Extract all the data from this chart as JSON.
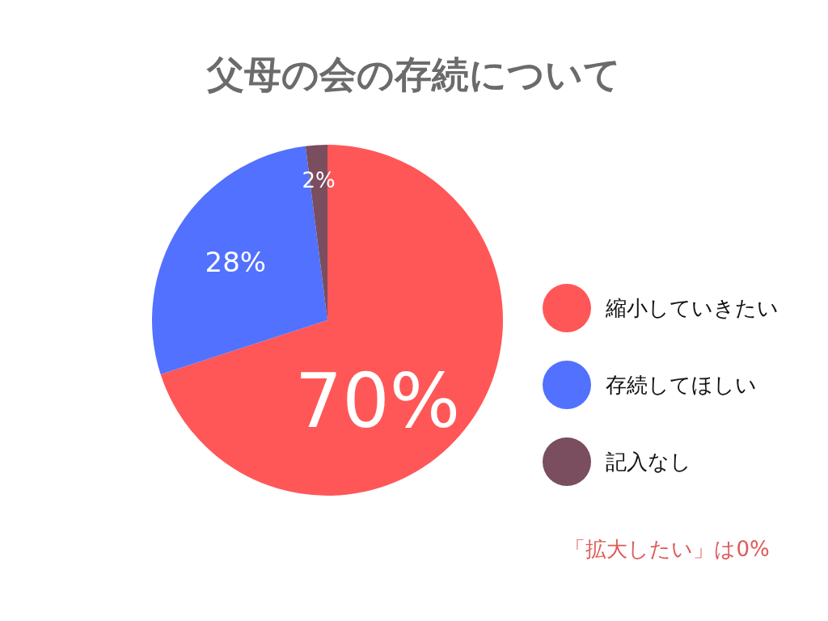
{
  "chart_data": {
    "type": "pie",
    "title": "父母の会の存続について",
    "categories": [
      "縮小していきたい",
      "存続してほしい",
      "記入なし"
    ],
    "values": [
      70,
      28,
      2
    ],
    "colors": [
      "#ff5757",
      "#5271ff",
      "#7a4d5f"
    ],
    "value_labels": [
      "70%",
      "28%",
      "2%"
    ],
    "legend": "right",
    "annotations": [
      "「拡大したい」は0%"
    ]
  }
}
